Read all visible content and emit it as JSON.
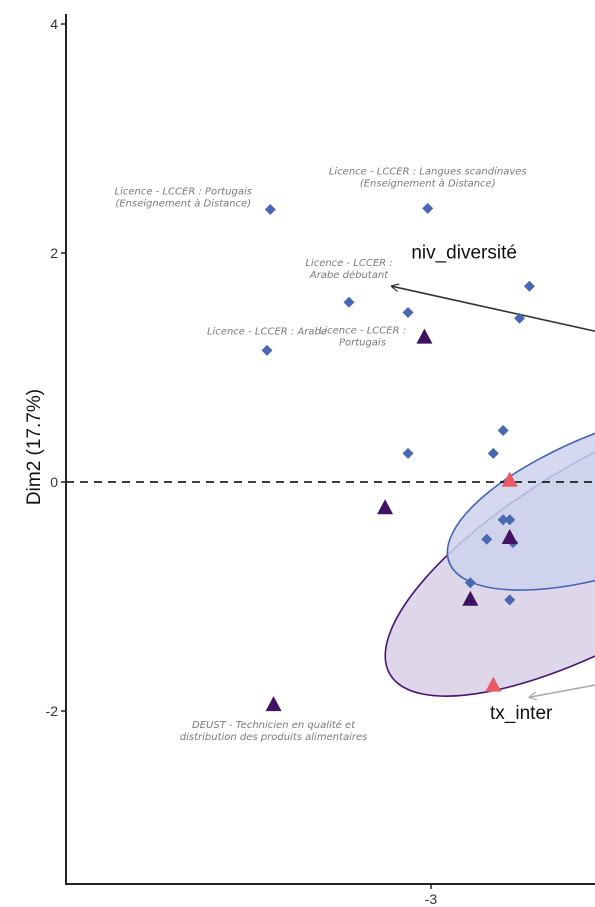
{
  "chart_data": {
    "type": "scatter",
    "title": "",
    "xlabel": "",
    "ylabel": "Dim2 (17.7%)",
    "xlim": [
      -4.0,
      -1.5
    ],
    "ylim": [
      -3.5,
      4.1
    ],
    "x_ticks": [
      {
        "value": -3,
        "label": "-3"
      }
    ],
    "y_ticks": [
      {
        "value": 4,
        "label": "4"
      },
      {
        "value": 2,
        "label": "2"
      },
      {
        "value": 0,
        "label": "0"
      },
      {
        "value": -2,
        "label": "-2"
      }
    ],
    "grid": false,
    "zero_line": {
      "y": 0,
      "style": "dashed"
    },
    "colors": {
      "diamond": "#4a67b3",
      "triangle_dark": "#3f1262",
      "triangle_red": "#e85a64",
      "ellipse_purple_fill": "#d8d0e6",
      "ellipse_purple_stroke": "#4a1670",
      "ellipse_blue_fill": "#ccd2ec",
      "ellipse_blue_stroke": "#4563b5",
      "arrow": "#333333",
      "arrow_light": "#aaaaaa"
    },
    "diamonds": [
      {
        "x": -3.5,
        "y": 1.15,
        "label": [
          "Licence - LCCER : Arabe"
        ]
      },
      {
        "x": -3.49,
        "y": 2.38,
        "label": [
          "Licence - LCCER : Portugais",
          "(Enseignement à Distance)"
        ]
      },
      {
        "x": -3.01,
        "y": 2.39,
        "label": [
          "Licence - LCCER : Langues scandinaves",
          "(Enseignement à Distance)"
        ]
      },
      {
        "x": -3.25,
        "y": 1.57,
        "label": [
          "Licence - LCCER :",
          "Arabe débutant"
        ]
      },
      {
        "x": -3.07,
        "y": 1.48,
        "label": []
      },
      {
        "x": -3.07,
        "y": 0.25,
        "label": []
      },
      {
        "x": -2.73,
        "y": 1.43,
        "label": []
      },
      {
        "x": -2.7,
        "y": 1.71,
        "label": []
      },
      {
        "x": -2.78,
        "y": 0.45,
        "label": []
      },
      {
        "x": -2.81,
        "y": 0.25,
        "label": []
      },
      {
        "x": -2.78,
        "y": -0.33,
        "label": []
      },
      {
        "x": -2.76,
        "y": -0.33,
        "label": []
      },
      {
        "x": -2.83,
        "y": -0.5,
        "label": []
      },
      {
        "x": -2.75,
        "y": -0.53,
        "label": []
      },
      {
        "x": -2.88,
        "y": -0.88,
        "label": []
      },
      {
        "x": -2.76,
        "y": -1.03,
        "label": []
      }
    ],
    "dark_triangles": [
      {
        "x": -3.02,
        "y": 1.27,
        "label": [
          "Licence - LCCER :",
          "Portugais"
        ]
      },
      {
        "x": -3.14,
        "y": -0.22,
        "label": []
      },
      {
        "x": -2.76,
        "y": -0.48,
        "label": []
      },
      {
        "x": -2.88,
        "y": -1.02,
        "label": []
      },
      {
        "x": -3.48,
        "y": -1.94,
        "label": [
          "DEUST - Technicien en qualité et",
          "distribution des produits alimentaires"
        ]
      }
    ],
    "red_triangles": [
      {
        "x": -2.76,
        "y": 0.02
      },
      {
        "x": -2.81,
        "y": -1.77
      }
    ],
    "ellipses": [
      {
        "name": "",
        "cx": -2.45,
        "cy": -0.56,
        "rx": 0.78,
        "ry": 0.79,
        "angle_deg": -30,
        "fill": "#d8d0e6",
        "stroke": "#4a1670",
        "opacity": 0.85
      },
      {
        "name": "",
        "cx": -2.4,
        "cy": -0.13,
        "rx": 0.58,
        "ry": 0.62,
        "angle_deg": -20,
        "fill": "#ccd2ec",
        "stroke": "#4563b5",
        "opacity": 0.85
      }
    ],
    "variables": [
      {
        "name": "niv_diversité",
        "x0": -2.0,
        "y0": 1.0,
        "x1": -3.12,
        "y1": 1.71,
        "label_x": -3.06,
        "label_y": 1.95,
        "color": "#333333"
      },
      {
        "name": "tx_inter",
        "x0": -1.8,
        "y0": -1.4,
        "x1": -2.7,
        "y1": -1.88,
        "label_x": -2.82,
        "label_y": -2.07,
        "color": "#aaaaaa"
      }
    ]
  }
}
